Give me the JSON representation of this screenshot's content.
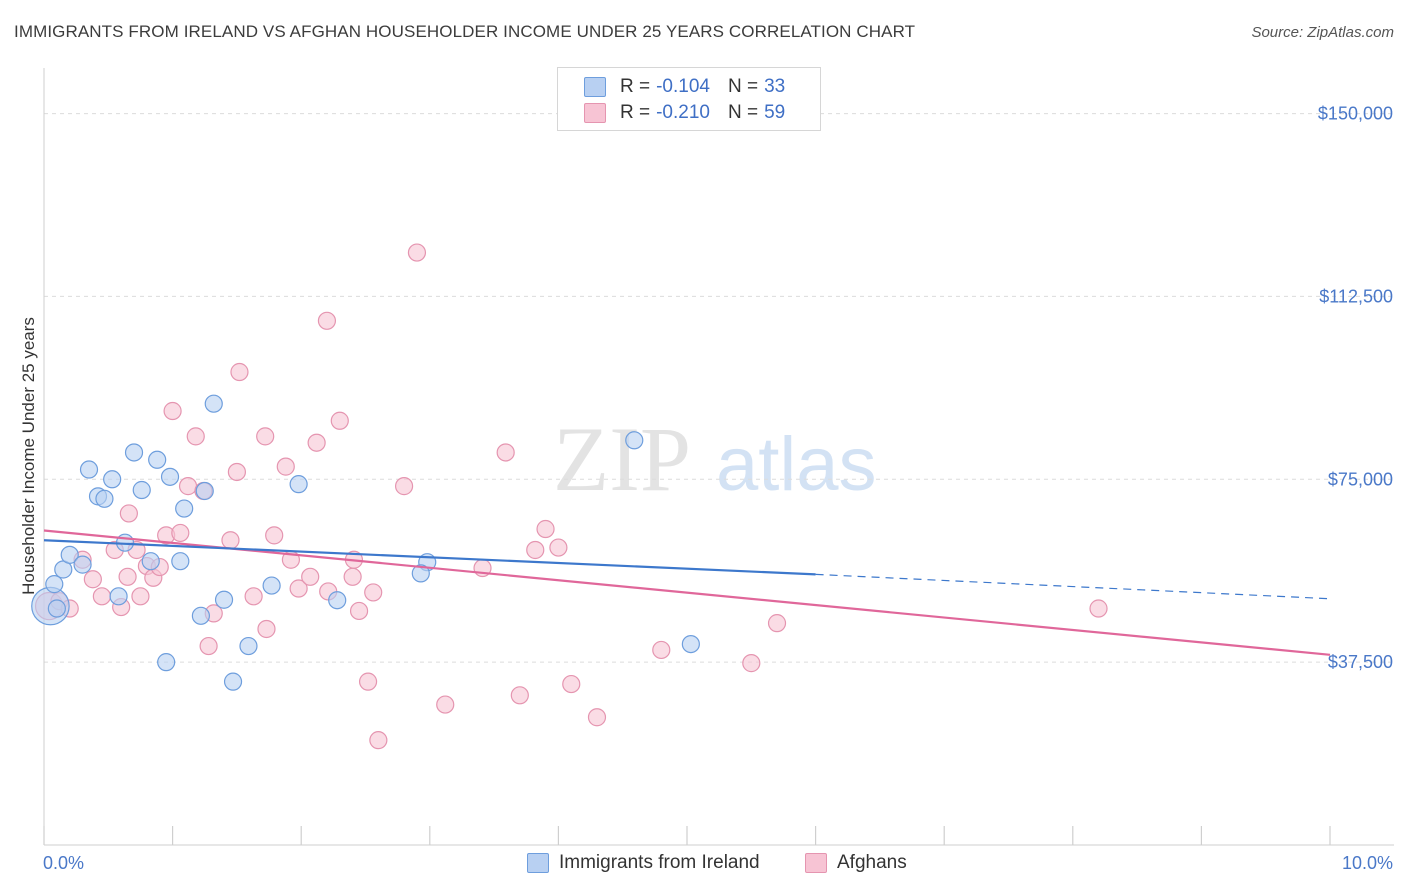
{
  "title": "IMMIGRANTS FROM IRELAND VS AFGHAN HOUSEHOLDER INCOME UNDER 25 YEARS CORRELATION CHART",
  "source": "Source: ZipAtlas.com",
  "watermark": {
    "zip": "ZIP",
    "atlas": "atlas"
  },
  "legend_top": {
    "rows": [
      {
        "r_label": "R =",
        "r_value": "-0.104",
        "n_label": "N =",
        "n_value": "33"
      },
      {
        "r_label": "R =",
        "r_value": "-0.210",
        "n_label": "N =",
        "n_value": "59"
      }
    ]
  },
  "legend_bottom": {
    "series_a": "Immigrants from Ireland",
    "series_b": "Afghans"
  },
  "colors": {
    "blue_fill": "#b8d0f2",
    "blue_stroke": "#6e9edd",
    "blue_line": "#3d78cc",
    "pink_fill": "#f7c4d4",
    "pink_stroke": "#e595b0",
    "pink_line": "#e0679a",
    "tick_text": "#4a78c8",
    "grid": "#dcdcdc"
  },
  "chart_data": {
    "type": "scatter",
    "title": "IMMIGRANTS FROM IRELAND VS AFGHAN HOUSEHOLDER INCOME UNDER 25 YEARS CORRELATION CHART",
    "xlabel": "",
    "ylabel": "Householder Income Under 25 years",
    "xlim": [
      0,
      10
    ],
    "ylim": [
      0,
      157500
    ],
    "x_tick_labels": [
      "0.0%",
      "10.0%"
    ],
    "y_ticks": [
      {
        "value": 37500,
        "label": "$37,500"
      },
      {
        "value": 75000,
        "label": "$75,000"
      },
      {
        "value": 112500,
        "label": "$112,500"
      },
      {
        "value": 150000,
        "label": "$150,000"
      }
    ],
    "series": [
      {
        "name": "Immigrants from Ireland",
        "r": -0.104,
        "n": 33,
        "trend": {
          "x0": 0.0,
          "y0": 62500,
          "x1": 6.0,
          "y1": 55500,
          "dash_x1": 10.0,
          "dash_y1": 50500
        },
        "points": [
          [
            0.05,
            49000,
            2.2
          ],
          [
            0.08,
            53500,
            1
          ],
          [
            0.15,
            56500,
            1
          ],
          [
            0.2,
            59500,
            1
          ],
          [
            0.3,
            57500,
            1
          ],
          [
            0.35,
            77000,
            1
          ],
          [
            0.42,
            71500,
            1
          ],
          [
            0.47,
            71000,
            1
          ],
          [
            0.53,
            75000,
            1
          ],
          [
            0.58,
            51000,
            1
          ],
          [
            0.63,
            62000,
            1
          ],
          [
            0.7,
            80500,
            1
          ],
          [
            0.76,
            72800,
            1
          ],
          [
            0.83,
            58200,
            1
          ],
          [
            0.88,
            79000,
            1
          ],
          [
            0.95,
            37500,
            1
          ],
          [
            0.98,
            75500,
            1
          ],
          [
            1.06,
            58200,
            1
          ],
          [
            1.09,
            69000,
            1
          ],
          [
            1.22,
            47000,
            1
          ],
          [
            1.25,
            72600,
            1
          ],
          [
            1.32,
            90500,
            1
          ],
          [
            1.4,
            50300,
            1
          ],
          [
            1.47,
            33500,
            1
          ],
          [
            1.59,
            40800,
            1
          ],
          [
            1.77,
            53200,
            1
          ],
          [
            1.98,
            74000,
            1
          ],
          [
            2.28,
            50200,
            1
          ],
          [
            2.98,
            58000,
            1
          ],
          [
            2.93,
            55700,
            1
          ],
          [
            4.59,
            83000,
            1
          ],
          [
            5.03,
            41200,
            1
          ],
          [
            0.1,
            48500,
            1
          ]
        ]
      },
      {
        "name": "Afghans",
        "r": -0.21,
        "n": 59,
        "trend": {
          "x0": 0.0,
          "y0": 64500,
          "x1": 10.0,
          "y1": 39000
        },
        "points": [
          [
            0.04,
            49000,
            1.6
          ],
          [
            0.12,
            50000,
            1
          ],
          [
            0.2,
            48500,
            1
          ],
          [
            0.3,
            58500,
            1
          ],
          [
            0.38,
            54500,
            1
          ],
          [
            0.45,
            51000,
            1
          ],
          [
            0.55,
            60500,
            1
          ],
          [
            0.6,
            48800,
            1
          ],
          [
            0.65,
            55000,
            1
          ],
          [
            0.66,
            68000,
            1
          ],
          [
            0.72,
            60500,
            1
          ],
          [
            0.75,
            51000,
            1
          ],
          [
            0.8,
            57200,
            1
          ],
          [
            0.85,
            54800,
            1
          ],
          [
            0.9,
            57000,
            1
          ],
          [
            0.95,
            63500,
            1
          ],
          [
            1.0,
            89000,
            1
          ],
          [
            1.06,
            64000,
            1
          ],
          [
            1.12,
            73600,
            1
          ],
          [
            1.18,
            83800,
            1
          ],
          [
            1.24,
            72600,
            1
          ],
          [
            1.28,
            40800,
            1
          ],
          [
            1.32,
            47500,
            1
          ],
          [
            1.45,
            62500,
            1
          ],
          [
            1.5,
            76500,
            1
          ],
          [
            1.52,
            97000,
            1
          ],
          [
            1.63,
            51000,
            1
          ],
          [
            1.73,
            44300,
            1
          ],
          [
            1.72,
            83800,
            1
          ],
          [
            1.79,
            63500,
            1
          ],
          [
            1.88,
            77600,
            1
          ],
          [
            1.92,
            58500,
            1
          ],
          [
            1.98,
            52600,
            1
          ],
          [
            2.07,
            55000,
            1
          ],
          [
            2.12,
            82500,
            1
          ],
          [
            2.2,
            107500,
            1
          ],
          [
            2.21,
            52000,
            1
          ],
          [
            2.3,
            87000,
            1
          ],
          [
            2.4,
            55000,
            1
          ],
          [
            2.41,
            58500,
            1
          ],
          [
            2.45,
            48000,
            1
          ],
          [
            2.52,
            33500,
            1
          ],
          [
            2.56,
            51800,
            1
          ],
          [
            2.6,
            21500,
            1
          ],
          [
            2.8,
            73600,
            1
          ],
          [
            2.9,
            121500,
            1
          ],
          [
            3.12,
            28800,
            1
          ],
          [
            3.41,
            56800,
            1
          ],
          [
            3.59,
            80500,
            1
          ],
          [
            3.7,
            30700,
            1
          ],
          [
            3.82,
            60500,
            1
          ],
          [
            3.9,
            64800,
            1
          ],
          [
            4.0,
            61000,
            1
          ],
          [
            4.1,
            33000,
            1
          ],
          [
            4.3,
            26200,
            1
          ],
          [
            4.8,
            40000,
            1
          ],
          [
            5.5,
            37300,
            1
          ],
          [
            5.7,
            45500,
            1
          ],
          [
            8.2,
            48500,
            1
          ]
        ]
      }
    ]
  }
}
